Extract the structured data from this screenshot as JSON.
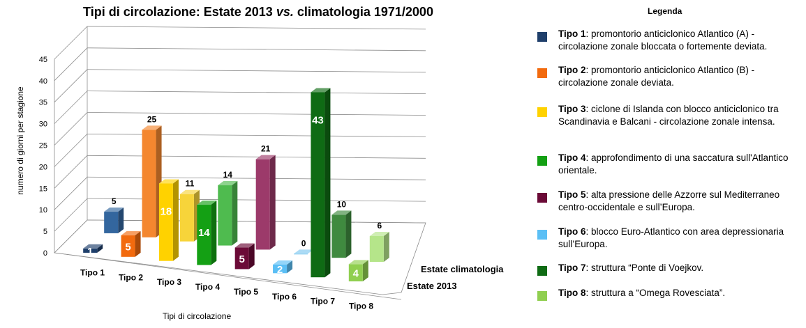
{
  "chart_data": {
    "type": "bar",
    "title_main": "Tipi di circolazione: Estate 2013 ",
    "title_vs": "vs.",
    "title_end": " climatologia 1971/2000",
    "xlabel": "Tipi di circolazione",
    "ylabel": "numero di giorni per stagione",
    "ylim": [
      0,
      45
    ],
    "yticks": [
      0,
      5,
      10,
      15,
      20,
      25,
      30,
      35,
      40,
      45
    ],
    "categories": [
      "Tipo 1",
      "Tipo 2",
      "Tipo 3",
      "Tipo 4",
      "Tipo 5",
      "Tipo 6",
      "Tipo 7",
      "Tipo 8"
    ],
    "series": [
      {
        "name": "Estate 2013",
        "values": [
          1,
          5,
          18,
          14,
          5,
          2,
          43,
          4
        ],
        "labels": [
          "1",
          "5",
          "18",
          "14",
          "5",
          "2",
          "43",
          "4"
        ]
      },
      {
        "name": "Estate climatologia",
        "values": [
          5,
          25,
          11,
          14,
          21,
          0,
          10,
          6
        ],
        "labels": [
          "5",
          "25",
          "11",
          "14",
          "21",
          "0",
          "10",
          "6"
        ]
      }
    ],
    "colors": [
      "#1f3f6b",
      "#f26a0e",
      "#ffd200",
      "#14a014",
      "#6b0a37",
      "#5bbff5",
      "#0f6b14",
      "#90cf50"
    ],
    "colors_clim": [
      "#33669e",
      "#f4872f",
      "#f7d43a",
      "#4fbb4f",
      "#9c3a6a",
      "#7fc8ef",
      "#3f8a3f",
      "#b5e58a"
    ]
  },
  "legend": {
    "title": "Legenda",
    "items": [
      {
        "name": "Tipo 1",
        "text": ":  promontorio anticiclonico Atlantico (A) - circolazione zonale bloccata o fortemente deviata."
      },
      {
        "name": "Tipo 2",
        "text": ": promontorio anticiclonico Atlantico (B) - circolazione zonale deviata."
      },
      {
        "name": "Tipo 3",
        "text": ": ciclone di Islanda con blocco anticiclonico tra Scandinavia e Balcani - circolazione zonale intensa."
      },
      {
        "name": "Tipo 4",
        "text": ": approfondimento di una saccatura sull'Atlantico orientale."
      },
      {
        "name": "Tipo 5",
        "text": ": alta pressione delle Azzorre sul Mediterraneo centro-occidentale e sull’Europa."
      },
      {
        "name": "Tipo 6",
        "text": ": blocco Euro-Atlantico con area depressionaria sull’Europa."
      },
      {
        "name": "Tipo 7",
        "text": ": struttura “Ponte di Voejkov."
      },
      {
        "name": "Tipo 8",
        "text": ": struttura a “Omega Rovesciata”."
      }
    ]
  }
}
